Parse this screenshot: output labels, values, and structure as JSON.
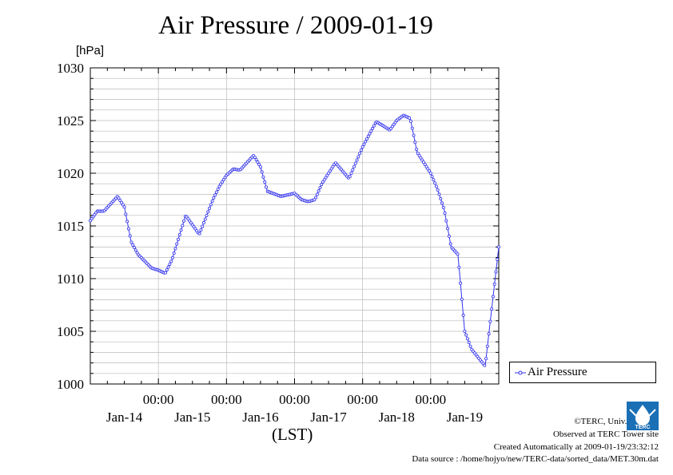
{
  "chart_data": {
    "type": "line",
    "title": "Air Pressure / 2009-01-19",
    "xlabel": "(LST)",
    "ylabel": "[hPa]",
    "ylim": [
      1000,
      1030
    ],
    "y_ticks": [
      "1000",
      "1005",
      "1010",
      "1015",
      "1020",
      "1025",
      "1030"
    ],
    "x_tick_labels": [
      "00:00",
      "00:00",
      "00:00",
      "00:00",
      "00:00"
    ],
    "x_day_labels": [
      "Jan-14",
      "Jan-15",
      "Jan-16",
      "Jan-17",
      "Jan-18",
      "Jan-19"
    ],
    "xlim_days": [
      0,
      6
    ],
    "grid": true,
    "legend": "right",
    "series": [
      {
        "name": "Air Pressure",
        "color": "#3333ee",
        "marker": "circle",
        "x_days": [
          0,
          0.1,
          0.2,
          0.4,
          0.5,
          0.6,
          0.7,
          0.9,
          1.0,
          1.1,
          1.2,
          1.4,
          1.6,
          1.8,
          1.9,
          2.0,
          2.1,
          2.2,
          2.4,
          2.5,
          2.6,
          2.8,
          3.0,
          3.1,
          3.2,
          3.3,
          3.4,
          3.6,
          3.8,
          4.0,
          4.2,
          4.4,
          4.5,
          4.6,
          4.7,
          4.8,
          5.0,
          5.1,
          5.2,
          5.3,
          5.4,
          5.5,
          5.6,
          5.8,
          6.0
        ],
        "values": [
          1015.5,
          1016.4,
          1016.4,
          1017.8,
          1016.8,
          1013.5,
          1012.3,
          1011.0,
          1010.8,
          1010.5,
          1011.8,
          1016.0,
          1014.2,
          1017.5,
          1018.8,
          1019.8,
          1020.4,
          1020.3,
          1021.7,
          1020.6,
          1018.3,
          1017.8,
          1018.1,
          1017.5,
          1017.3,
          1017.5,
          1019.0,
          1021.0,
          1019.5,
          1022.5,
          1024.9,
          1024.1,
          1025.0,
          1025.5,
          1025.2,
          1022.0,
          1020.0,
          1018.5,
          1016.5,
          1013.0,
          1012.3,
          1005.0,
          1003.3,
          1001.7,
          1013.0
        ]
      }
    ]
  },
  "legend_label": "Air Pressure",
  "credits": {
    "line1": "©TERC, Univ. Tsukuba",
    "line2": "Observed at TERC Tower site",
    "line3": "Created Automatically at 2009-01-19/23:32:12",
    "line4": "Data source : /home/hojyo/new/TERC-data/sorted_data/MET.30m.dat"
  },
  "logo_text": "TERC"
}
